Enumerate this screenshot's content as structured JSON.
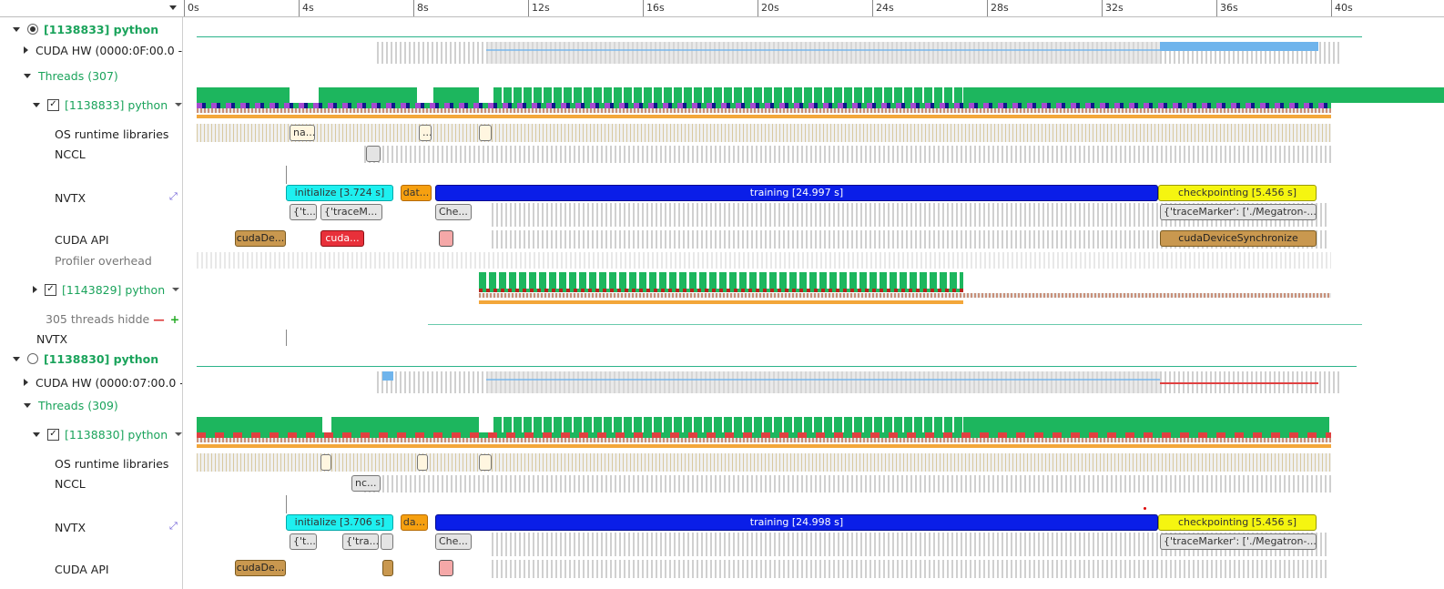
{
  "ruler": {
    "ticks": [
      "0s",
      "4s",
      "8s",
      "12s",
      "16s",
      "20s",
      "24s",
      "28s",
      "32s",
      "36s",
      "40s"
    ]
  },
  "tree": {
    "p1": {
      "process": "[1138833] python",
      "cuda_hw": "CUDA HW (0000:0F:00.0 - /",
      "threads": "Threads (307)",
      "main_thread": "[1138833] python",
      "os_runtime": "OS runtime libraries",
      "nccl": "NCCL",
      "nvtx": "NVTX",
      "cuda_api": "CUDA API",
      "profiler_overhead": "Profiler overhead",
      "second_thread": "[1143829] python",
      "hidden_threads": "305 threads hidde",
      "nvtx_process": "NVTX"
    },
    "p2": {
      "process": "[1138830] python",
      "cuda_hw": "CUDA HW (0000:07:00.0 -",
      "threads": "Threads (309)",
      "main_thread": "[1138830] python",
      "os_runtime": "OS runtime libraries",
      "nccl": "NCCL",
      "nvtx": "NVTX",
      "cuda_api": "CUDA API"
    }
  },
  "ranges": {
    "p1": {
      "os_na": "na...",
      "os_dots": "...",
      "nvtx_initialize": "initialize [3.724 s]",
      "nvtx_dat": "dat...",
      "nvtx_training": "training [24.997 s]",
      "nvtx_checkpointing": "checkpointing [5.456 s]",
      "sub_t": "{'t...",
      "sub_trace": "{'traceM...",
      "sub_che": "Che...",
      "sub_marker": "{'traceMarker': ['./Megatron-...",
      "api_cudade": "cudaDe...",
      "api_cuda": "cuda...",
      "api_sync": "cudaDeviceSynchronize"
    },
    "p2": {
      "nccl_nc": "nc...",
      "nvtx_initialize": "initialize [3.706 s]",
      "nvtx_da": "da...",
      "nvtx_training": "training [24.998 s]",
      "nvtx_checkpointing": "checkpointing [5.456 s]",
      "sub_t": "{'t...",
      "sub_tra": "{'tra...",
      "sub_che": "Che...",
      "sub_marker": "{'traceMarker': ['./Megatron-...",
      "api_cudade": "cudaDe..."
    }
  },
  "colors": {
    "nvtx_initialize": "#1ef0f0",
    "nvtx_data": "#f6a010",
    "nvtx_training": "#0a1ee8",
    "nvtx_checkpointing": "#f5f510",
    "cuda_api": "#c9984f",
    "thread_green": "#1db65e"
  }
}
